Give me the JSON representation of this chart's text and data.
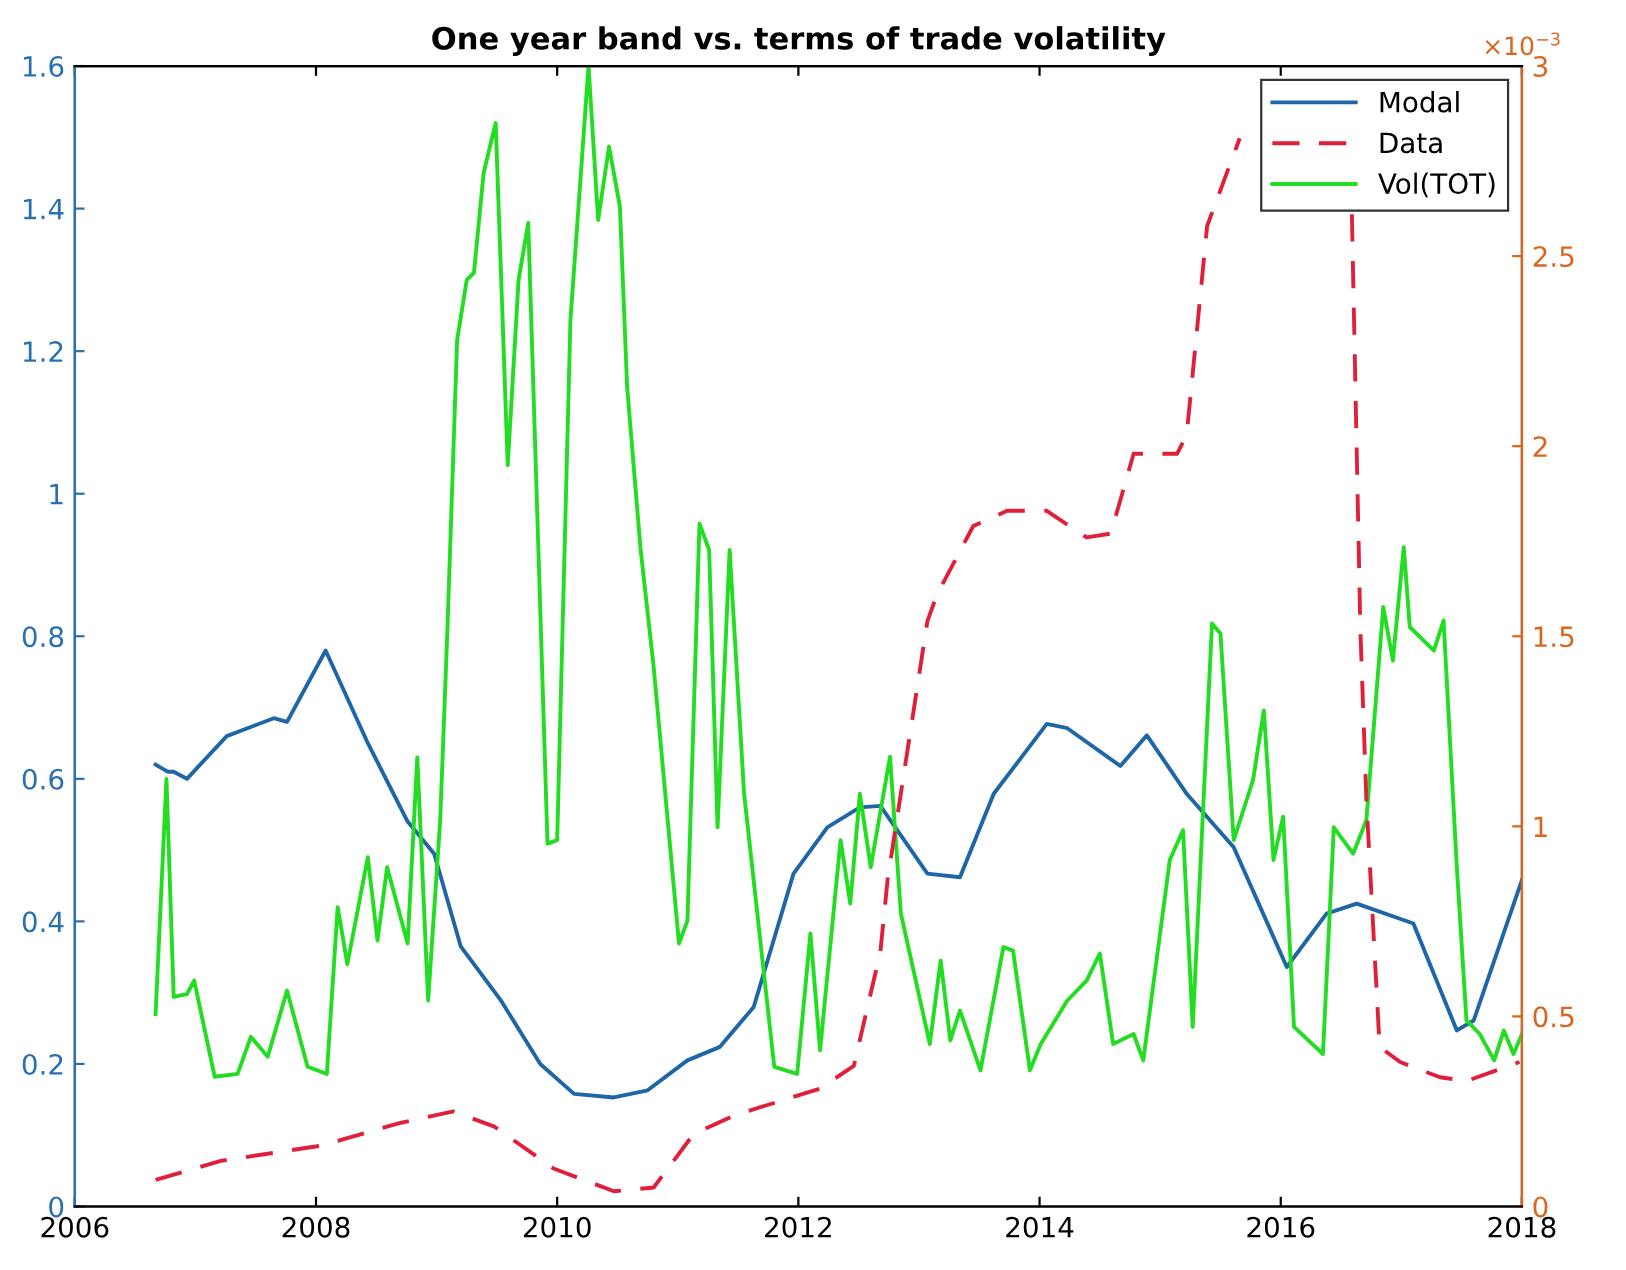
{
  "chart_data": {
    "type": "line",
    "title": "One year band vs. terms of trade volatility",
    "xlim": [
      2006,
      2018
    ],
    "xticks": [
      2006,
      2008,
      2010,
      2012,
      2014,
      2016,
      2018
    ],
    "ylim": [
      0,
      1.6
    ],
    "yticks": [
      0,
      0.2,
      0.4,
      0.6,
      0.8,
      1,
      1.2,
      1.4,
      1.6
    ],
    "y2lim": [
      0,
      3
    ],
    "y2ticks": [
      0,
      0.5,
      1,
      1.5,
      2,
      2.5,
      3
    ],
    "annotations": [
      "×10$^{−3}$"
    ],
    "grid": false,
    "legend": "top right",
    "series": [
      {
        "name": "Modal",
        "color": "#1f66a8",
        "line_style": "solid",
        "x": [
          2006.67,
          2006.77,
          2006.82,
          2006.93,
          2007.26,
          2007.65,
          2007.76,
          2008.08,
          2008.43,
          2008.76,
          2008.98,
          2009.2,
          2009.53,
          2009.86,
          2010.14,
          2010.47,
          2010.75,
          2011.08,
          2011.35,
          2011.63,
          2011.96,
          2012.24,
          2012.51,
          2012.68,
          2013.07,
          2013.34,
          2013.62,
          2014.06,
          2014.23,
          2014.67,
          2014.89,
          2015.22,
          2015.61,
          2016.05,
          2016.38,
          2016.63,
          2017.1,
          2017.46,
          2017.6,
          2018.0
        ],
        "values": [
          0.62,
          0.61,
          0.61,
          0.6,
          0.66,
          0.685,
          0.68,
          0.78,
          0.65,
          0.54,
          0.495,
          0.365,
          0.29,
          0.2,
          0.158,
          0.153,
          0.163,
          0.205,
          0.224,
          0.28,
          0.467,
          0.532,
          0.56,
          0.562,
          0.467,
          0.462,
          0.579,
          0.677,
          0.671,
          0.618,
          0.661,
          0.579,
          0.504,
          0.336,
          0.411,
          0.425,
          0.397,
          0.247,
          0.261,
          0.458
        ]
      },
      {
        "name": "Data",
        "color": "#e0203a",
        "line_style": "dashed",
        "axis": "y2",
        "x": [
          2006.67,
          2007.21,
          2008.04,
          2008.7,
          2009.14,
          2009.48,
          2009.97,
          2010.47,
          2010.8,
          2011.13,
          2011.47,
          2012.18,
          2012.46,
          2012.68,
          2012.74,
          2013.07,
          2013.15,
          2013.45,
          2013.73,
          2014.06,
          2014.39,
          2014.59,
          2014.78,
          2015.14,
          2015.22,
          2015.39,
          2015.66,
          2016.1,
          2016.59,
          2016.66,
          2016.71,
          2016.82,
          2016.99,
          2017.32,
          2017.54,
          2017.98
        ],
        "values": [
          0.07,
          0.12,
          0.16,
          0.22,
          0.25,
          0.21,
          0.1,
          0.04,
          0.05,
          0.19,
          0.24,
          0.31,
          0.37,
          0.67,
          0.86,
          1.54,
          1.61,
          1.79,
          1.83,
          1.83,
          1.76,
          1.77,
          1.98,
          1.98,
          2.03,
          2.58,
          2.81,
          null,
          2.61,
          1.52,
          1.07,
          0.42,
          0.38,
          0.34,
          0.33,
          0.38
        ]
      },
      {
        "name": "Vol(TOT)",
        "color": "#22dd22",
        "line_style": "solid",
        "x": [
          2006.67,
          2006.76,
          2006.82,
          2006.93,
          2006.99,
          2007.16,
          2007.35,
          2007.46,
          2007.6,
          2007.76,
          2007.93,
          2008.09,
          2008.18,
          2008.26,
          2008.43,
          2008.51,
          2008.59,
          2008.76,
          2008.84,
          2008.93,
          2009.03,
          2009.09,
          2009.17,
          2009.25,
          2009.31,
          2009.39,
          2009.49,
          2009.59,
          2009.68,
          2009.76,
          2009.92,
          2010.0,
          2010.11,
          2010.26,
          2010.34,
          2010.43,
          2010.52,
          2010.58,
          2010.69,
          2010.8,
          2011.01,
          2011.08,
          2011.18,
          2011.26,
          2011.33,
          2011.43,
          2011.55,
          2011.8,
          2011.99,
          2012.1,
          2012.18,
          2012.35,
          2012.43,
          2012.51,
          2012.6,
          2012.76,
          2012.85,
          2013.09,
          2013.18,
          2013.26,
          2013.34,
          2013.51,
          2013.7,
          2013.78,
          2013.92,
          2014.01,
          2014.23,
          2014.39,
          2014.5,
          2014.61,
          2014.78,
          2014.86,
          2015.08,
          2015.19,
          2015.27,
          2015.43,
          2015.5,
          2015.61,
          2015.77,
          2015.86,
          2015.94,
          2016.02,
          2016.11,
          2016.35,
          2016.44,
          2016.6,
          2016.71,
          2016.85,
          2016.93,
          2017.02,
          2017.07,
          2017.27,
          2017.35,
          2017.46,
          2017.54,
          2017.65,
          2017.77,
          2017.85,
          2017.93,
          2018.0
        ],
        "values": [
          0.27,
          0.6,
          0.294,
          0.298,
          0.317,
          0.182,
          0.186,
          0.238,
          0.21,
          0.303,
          0.196,
          0.186,
          0.42,
          0.34,
          0.49,
          0.373,
          0.476,
          0.369,
          0.63,
          0.289,
          0.542,
          0.81,
          1.215,
          1.3,
          1.31,
          1.45,
          1.52,
          1.04,
          1.3,
          1.38,
          0.509,
          0.514,
          1.244,
          1.6,
          1.384,
          1.487,
          1.403,
          1.15,
          0.925,
          0.757,
          0.369,
          0.401,
          0.958,
          0.921,
          0.532,
          0.921,
          0.579,
          0.196,
          0.186,
          0.383,
          0.219,
          0.514,
          0.425,
          0.579,
          0.476,
          0.631,
          0.411,
          0.228,
          0.345,
          0.233,
          0.275,
          0.191,
          0.364,
          0.359,
          0.191,
          0.228,
          0.289,
          0.317,
          0.355,
          0.228,
          0.242,
          0.205,
          0.486,
          0.528,
          0.252,
          0.818,
          0.804,
          0.514,
          0.598,
          0.696,
          0.486,
          0.547,
          0.252,
          0.214,
          0.532,
          0.495,
          0.542,
          0.841,
          0.766,
          0.925,
          0.813,
          0.78,
          0.822,
          0.476,
          0.261,
          0.242,
          0.205,
          0.247,
          0.214,
          0.242
        ]
      }
    ]
  }
}
